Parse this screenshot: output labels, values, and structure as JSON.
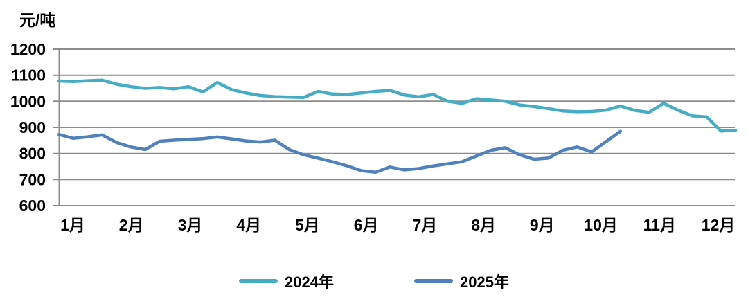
{
  "chart_data": {
    "type": "line",
    "title": "",
    "ylabel": "元/吨",
    "xlabel": "",
    "ylim": [
      600,
      1200
    ],
    "yticks": [
      1200,
      1100,
      1000,
      900,
      800,
      700,
      600
    ],
    "categories": [
      "1月",
      "2月",
      "3月",
      "4月",
      "5月",
      "6月",
      "7月",
      "8月",
      "9月",
      "10月",
      "11月",
      "12月"
    ],
    "points_per_month": 4,
    "grid": true,
    "legend_position": "bottom",
    "colors": {
      "grid": "#8C8C8C",
      "axis_text": "#000000",
      "background": "#FFFFFF"
    },
    "series": [
      {
        "name": "2024年",
        "color": "#45ACC5",
        "values": [
          1078,
          1076,
          1079,
          1081,
          1066,
          1056,
          1050,
          1053,
          1048,
          1056,
          1036,
          1072,
          1045,
          1032,
          1022,
          1018,
          1016,
          1015,
          1038,
          1028,
          1026,
          1032,
          1038,
          1042,
          1024,
          1017,
          1026,
          1000,
          992,
          1010,
          1005,
          1000,
          986,
          980,
          972,
          963,
          960,
          961,
          966,
          982,
          965,
          958,
          992,
          966,
          944,
          940,
          886,
          889
        ]
      },
      {
        "name": "2025年",
        "color": "#4F81BD",
        "values": [
          873,
          858,
          864,
          871,
          842,
          825,
          815,
          847,
          851,
          854,
          857,
          863,
          856,
          848,
          844,
          851,
          815,
          795,
          782,
          768,
          753,
          734,
          728,
          748,
          737,
          742,
          752,
          760,
          768,
          790,
          812,
          822,
          795,
          778,
          782,
          812,
          825,
          806,
          845,
          885
        ]
      }
    ]
  }
}
